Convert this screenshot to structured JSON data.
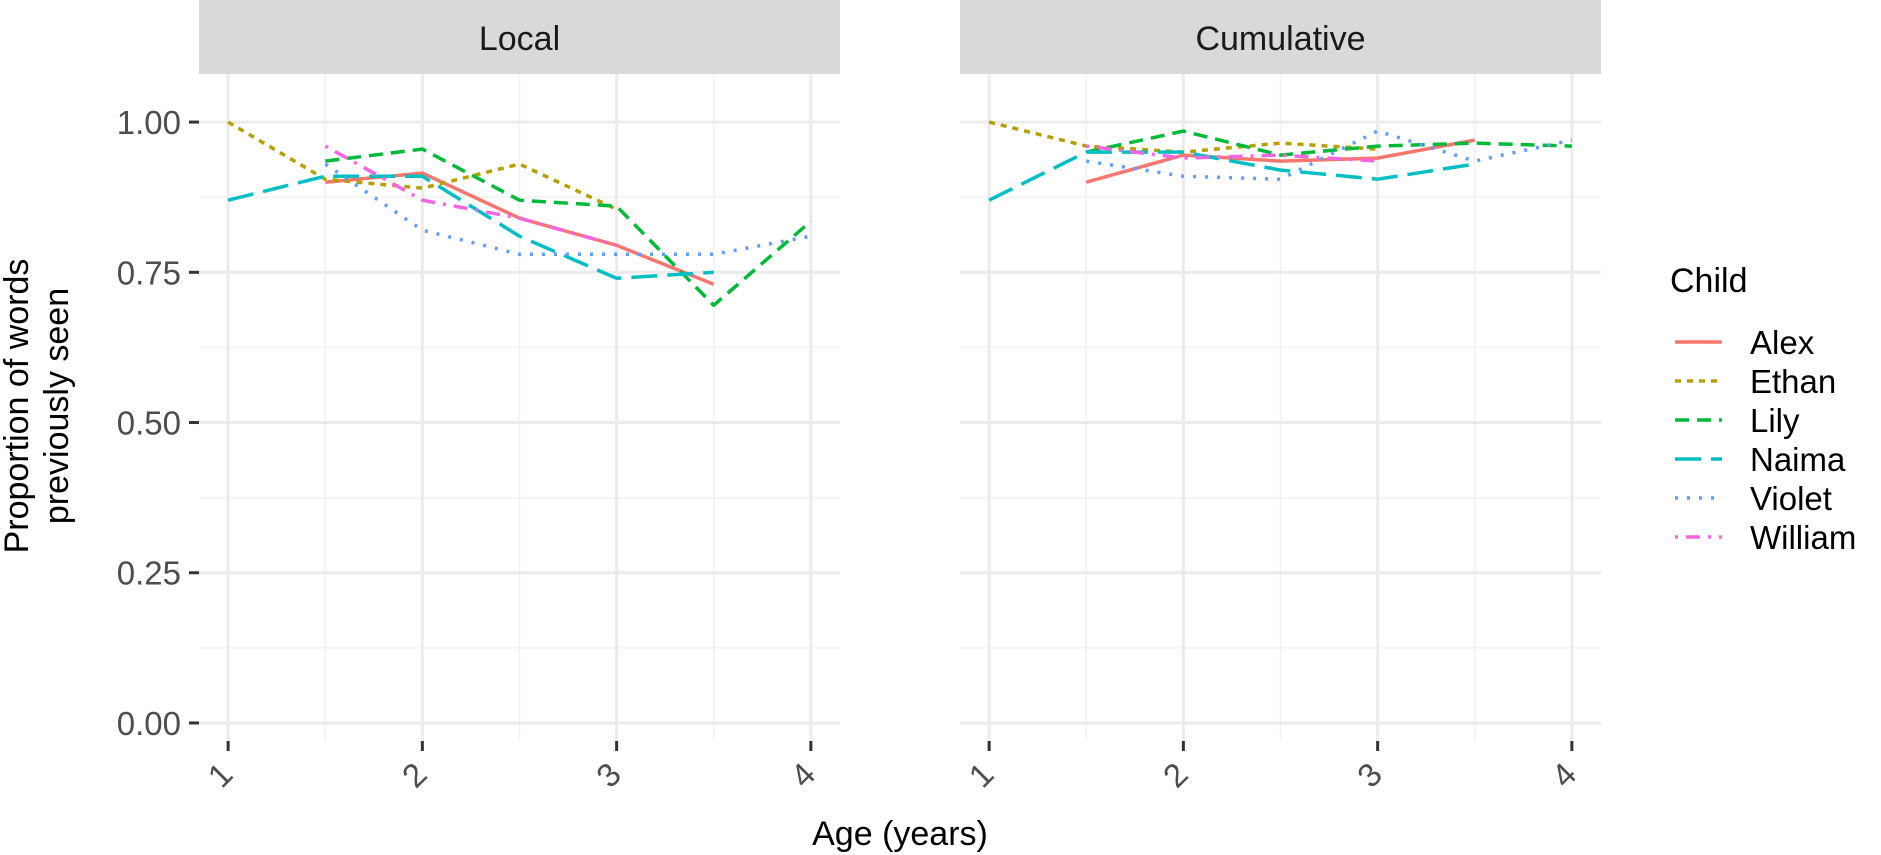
{
  "chart_data": {
    "type": "line",
    "xlabel": "Age (years)",
    "ylabel": "Proportion of words previously seen",
    "ylabel_lines": [
      "Proportion of words",
      "previously seen"
    ],
    "x_ticks": [
      1,
      2,
      3,
      4
    ],
    "x_tick_labels": [
      "1",
      "2",
      "3",
      "4"
    ],
    "y_ticks": [
      0,
      0.25,
      0.5,
      0.75,
      1.0
    ],
    "y_tick_labels": [
      "0.00",
      "0.25",
      "0.50",
      "0.75",
      "1.00"
    ],
    "xlim": [
      0.85,
      4.15
    ],
    "ylim": [
      -0.03,
      1.08
    ],
    "grid": true,
    "legend": {
      "title": "Child",
      "position": "right",
      "entries": [
        {
          "name": "Alex",
          "color": "#F8766D",
          "dash": "solid"
        },
        {
          "name": "Ethan",
          "color": "#B79F00",
          "dash": "dotted"
        },
        {
          "name": "Lily",
          "color": "#00BA38",
          "dash": "dashed"
        },
        {
          "name": "Naima",
          "color": "#00BFC4",
          "dash": "longdash"
        },
        {
          "name": "Violet",
          "color": "#619CFF",
          "dash": "dot"
        },
        {
          "name": "William",
          "color": "#F564E3",
          "dash": "dotdash"
        }
      ]
    },
    "panels": [
      {
        "title": "Local",
        "series": [
          {
            "name": "Alex",
            "x": [
              1.5,
              2.0,
              2.5,
              3.0,
              3.5
            ],
            "y": [
              0.9,
              0.915,
              0.84,
              0.795,
              0.73
            ]
          },
          {
            "name": "Ethan",
            "x": [
              1.0,
              1.5,
              2.0,
              2.5,
              3.0
            ],
            "y": [
              1.0,
              0.905,
              0.89,
              0.93,
              0.855
            ]
          },
          {
            "name": "Lily",
            "x": [
              1.5,
              2.0,
              2.5,
              3.0,
              3.5,
              4.0
            ],
            "y": [
              0.935,
              0.955,
              0.87,
              0.86,
              0.695,
              0.835
            ]
          },
          {
            "name": "Naima",
            "x": [
              1.0,
              1.5,
              2.0,
              2.5,
              3.0,
              3.5
            ],
            "y": [
              0.87,
              0.91,
              0.91,
              0.81,
              0.74,
              0.75
            ]
          },
          {
            "name": "Violet",
            "x": [
              1.5,
              2.0,
              2.5,
              3.0,
              3.5,
              4.0
            ],
            "y": [
              0.93,
              0.82,
              0.78,
              0.78,
              0.78,
              0.81
            ]
          },
          {
            "name": "William",
            "x": [
              1.5,
              2.0,
              2.5,
              3.0
            ],
            "y": [
              0.96,
              0.87,
              0.84,
              0.795
            ]
          }
        ]
      },
      {
        "title": "Cumulative",
        "series": [
          {
            "name": "Alex",
            "x": [
              1.5,
              2.0,
              2.5,
              3.0,
              3.5
            ],
            "y": [
              0.9,
              0.945,
              0.935,
              0.94,
              0.97
            ]
          },
          {
            "name": "Ethan",
            "x": [
              1.0,
              1.5,
              2.0,
              2.5,
              3.0
            ],
            "y": [
              1.0,
              0.96,
              0.95,
              0.965,
              0.955
            ]
          },
          {
            "name": "Lily",
            "x": [
              1.5,
              2.0,
              2.5,
              3.0,
              3.5,
              4.0
            ],
            "y": [
              0.95,
              0.985,
              0.945,
              0.96,
              0.965,
              0.96
            ]
          },
          {
            "name": "Naima",
            "x": [
              1.0,
              1.5,
              2.0,
              2.5,
              3.0,
              3.5
            ],
            "y": [
              0.87,
              0.95,
              0.95,
              0.92,
              0.905,
              0.93
            ]
          },
          {
            "name": "Violet",
            "x": [
              1.5,
              2.0,
              2.5,
              3.0,
              3.5,
              4.0
            ],
            "y": [
              0.935,
              0.91,
              0.905,
              0.985,
              0.935,
              0.97
            ]
          },
          {
            "name": "William",
            "x": [
              1.5,
              2.0,
              2.5,
              3.0
            ],
            "y": [
              0.96,
              0.94,
              0.945,
              0.935
            ]
          }
        ]
      }
    ]
  }
}
